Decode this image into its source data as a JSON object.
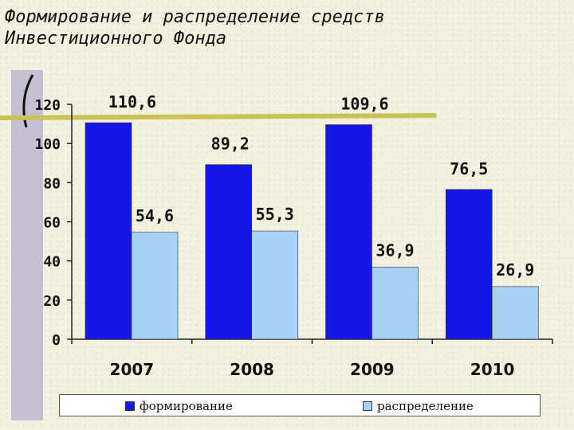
{
  "title": "Формирование и распределение средств\nИнвестиционного Фонда",
  "chart_data": {
    "type": "bar",
    "title": "",
    "xlabel": "",
    "ylabel": "",
    "categories": [
      "2007",
      "2008",
      "2009",
      "2010"
    ],
    "series": [
      {
        "name": "формирование",
        "values": [
          110.6,
          89.2,
          109.6,
          76.5
        ],
        "labels": [
          "110,6",
          "89,2",
          "109,6",
          "76,5"
        ],
        "color": "#1616e6"
      },
      {
        "name": "распределение",
        "values": [
          54.6,
          55.3,
          36.9,
          26.9
        ],
        "labels": [
          "54,6",
          "55,3",
          "36,9",
          "26,9"
        ],
        "color": "#a8d2f5"
      }
    ],
    "yticks": [
      "0",
      "20",
      "40",
      "60",
      "80",
      "100",
      "120"
    ],
    "ylim": [
      0,
      120
    ],
    "grid": false,
    "legend": "bottom"
  },
  "decoration": {
    "accent_line_color": "#c8c45a",
    "bracket_color": "#b7afcd"
  }
}
